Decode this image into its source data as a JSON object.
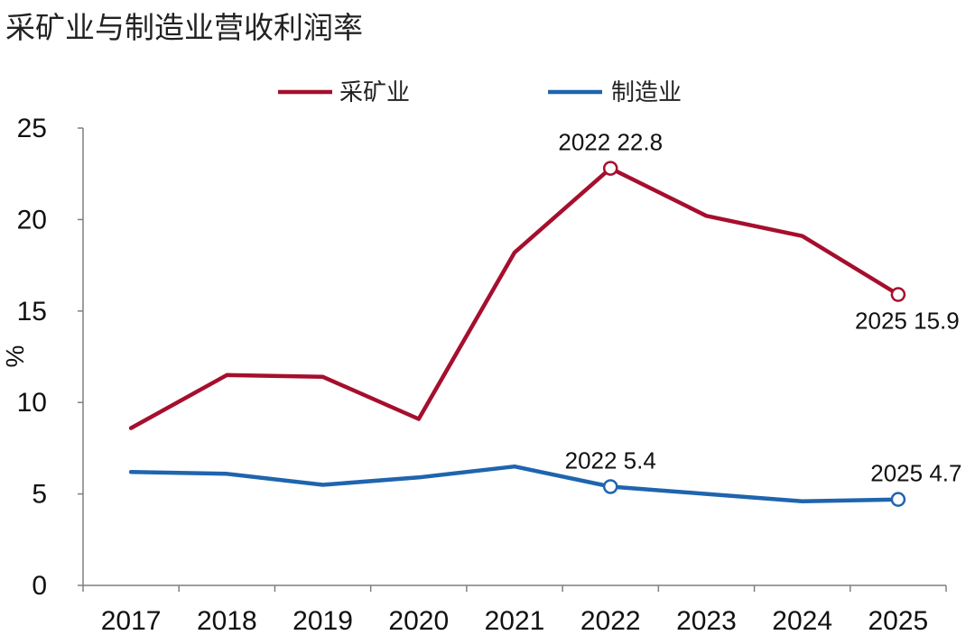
{
  "chart_data": {
    "type": "line",
    "title": "采矿业与制造业营收利润率",
    "ylabel": "%",
    "xlabel": "",
    "ylim": [
      0,
      25
    ],
    "yticks": [
      0,
      5,
      10,
      15,
      20,
      25
    ],
    "grid": false,
    "legend_position": "top-center",
    "categories": [
      "2017",
      "2018",
      "2019",
      "2020",
      "2021",
      "2022",
      "2023",
      "2024",
      "2025"
    ],
    "series": [
      {
        "name": "采矿业",
        "color": "#A50F2D",
        "values": [
          8.6,
          11.5,
          11.4,
          9.1,
          18.2,
          22.8,
          20.2,
          19.1,
          15.9
        ]
      },
      {
        "name": "制造业",
        "color": "#1F64AE",
        "values": [
          6.2,
          6.1,
          5.5,
          5.9,
          6.5,
          5.4,
          5.0,
          4.6,
          4.7
        ]
      }
    ],
    "annotations": [
      {
        "series": 0,
        "index": 5,
        "text": "2022 22.8",
        "place": "above"
      },
      {
        "series": 0,
        "index": 8,
        "text": "2025 15.9",
        "place": "below"
      },
      {
        "series": 1,
        "index": 5,
        "text": "2022 5.4",
        "place": "above"
      },
      {
        "series": 1,
        "index": 8,
        "text": "2025 4.7",
        "place": "above"
      }
    ]
  }
}
